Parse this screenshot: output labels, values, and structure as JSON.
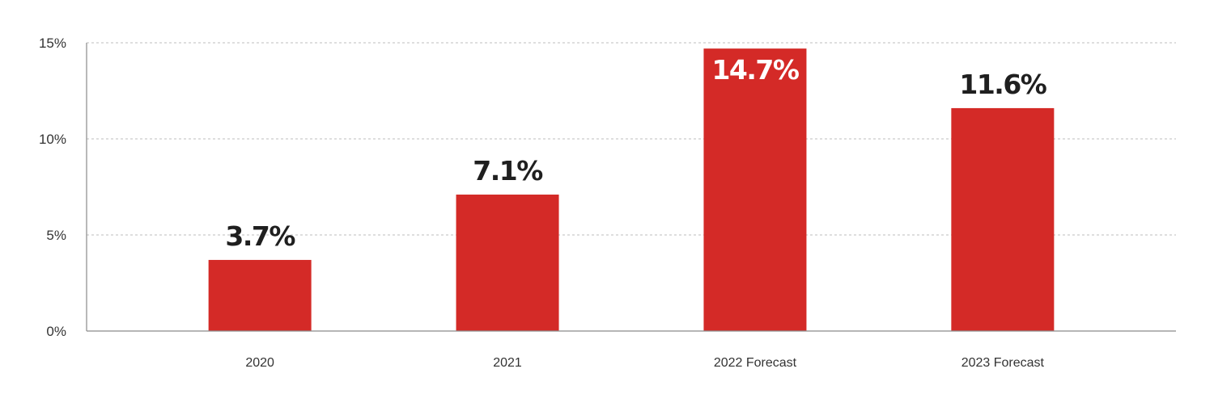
{
  "chart_data": {
    "type": "bar",
    "categories": [
      "2020",
      "2021",
      "2022 Forecast",
      "2023 Forecast"
    ],
    "values": [
      3.7,
      7.1,
      14.7,
      11.6
    ],
    "data_labels": [
      "3.7%",
      "7.1%",
      "14.7%",
      "11.6%"
    ],
    "ylim": [
      0,
      15
    ],
    "yticks": [
      0,
      5,
      10,
      15
    ],
    "ytick_labels": [
      "0%",
      "5%",
      "10%",
      "15%"
    ],
    "grid": true,
    "colors": {
      "bar": "#d42a27",
      "label_outside": "#1f1f1f",
      "label_inside": "#ffffff"
    }
  }
}
